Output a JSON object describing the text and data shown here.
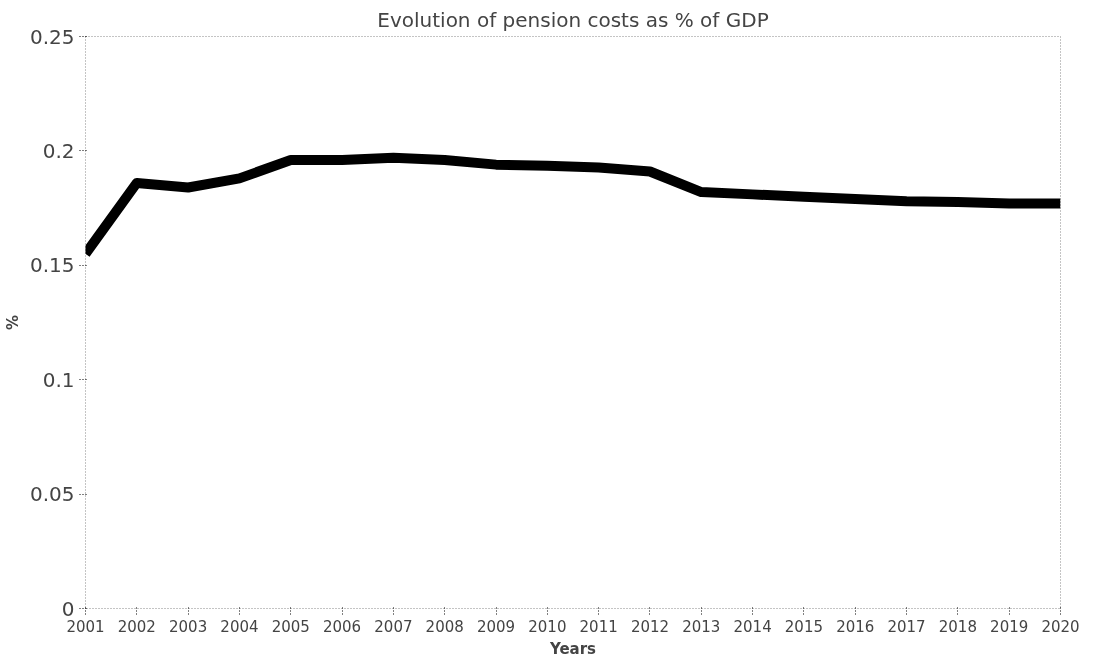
{
  "chart_data": {
    "type": "line",
    "title": "Evolution of pension costs as % of GDP",
    "xlabel": "Years",
    "ylabel": "%",
    "categories": [
      "2001",
      "2002",
      "2003",
      "2004",
      "2005",
      "2006",
      "2007",
      "2008",
      "2009",
      "2010",
      "2011",
      "2012",
      "2013",
      "2014",
      "2015",
      "2016",
      "2017",
      "2018",
      "2019",
      "2020"
    ],
    "series": [
      {
        "color": "#000000",
        "values": [
          0.155,
          0.186,
          0.184,
          0.188,
          0.196,
          0.196,
          0.197,
          0.196,
          0.194,
          0.1935,
          0.1927,
          0.191,
          0.182,
          0.181,
          0.18,
          0.179,
          0.178,
          0.1777,
          0.177,
          0.177
        ]
      }
    ],
    "ylim": [
      0,
      0.25
    ],
    "yticks": [
      0,
      0.05,
      0.1,
      0.15,
      0.2,
      0.25
    ],
    "grid": false,
    "marker": "none",
    "line_style": "solid"
  }
}
